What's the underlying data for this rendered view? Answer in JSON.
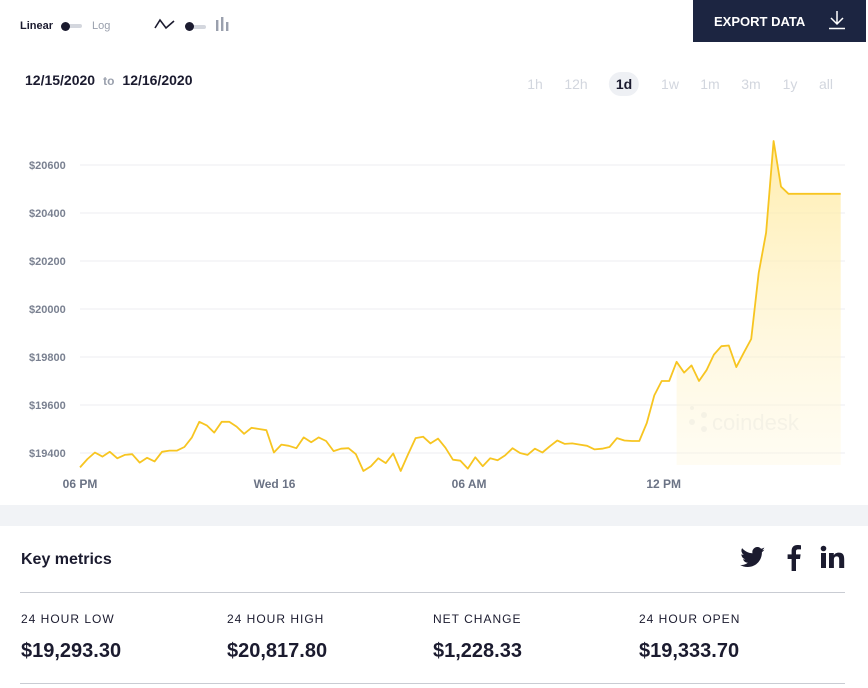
{
  "toolbar": {
    "scale_linear": "Linear",
    "scale_log": "Log",
    "export_label": "EXPORT DATA"
  },
  "date_range": {
    "from": "12/15/2020",
    "to_word": "to",
    "to": "12/16/2020"
  },
  "ranges": [
    {
      "label": "1h",
      "active": false
    },
    {
      "label": "12h",
      "active": false
    },
    {
      "label": "1d",
      "active": true
    },
    {
      "label": "1w",
      "active": false
    },
    {
      "label": "1m",
      "active": false
    },
    {
      "label": "3m",
      "active": false
    },
    {
      "label": "1y",
      "active": false
    },
    {
      "label": "all",
      "active": false
    }
  ],
  "chart_data": {
    "type": "area",
    "title": "",
    "xlabel": "",
    "ylabel": "",
    "y_tick_labels": [
      "$19400",
      "$19600",
      "$19800",
      "$20000",
      "$20200",
      "$20400",
      "$20600"
    ],
    "y_ticks": [
      19400,
      19600,
      19800,
      20000,
      20200,
      20400,
      20600
    ],
    "ylim": [
      19300,
      20700
    ],
    "x_tick_labels": [
      "06 PM",
      "Wed 16",
      "06 AM",
      "12 PM"
    ],
    "x_tick_hours": [
      18,
      24,
      30,
      36
    ],
    "xlim_hours": [
      18,
      41.5
    ],
    "grid": true,
    "line_color": "#f7c521",
    "fill_color": "#fff1c0",
    "watermark": "coindesk",
    "series": [
      {
        "x_hours": [
          18.0,
          18.23,
          18.46,
          18.69,
          18.92,
          19.15,
          19.38,
          19.61,
          19.84,
          20.07,
          20.3,
          20.53,
          20.76,
          20.99,
          21.22,
          21.45,
          21.68,
          21.91,
          22.14,
          22.37,
          22.6,
          22.83,
          23.06,
          23.29,
          23.52,
          23.75,
          23.98,
          24.21,
          24.44,
          24.67,
          24.9,
          25.13,
          25.36,
          25.59,
          25.82,
          26.05,
          26.28,
          26.51,
          26.74,
          26.97,
          27.2,
          27.43,
          27.66,
          27.89,
          28.12,
          28.35,
          28.58,
          28.81,
          29.04,
          29.27,
          29.5,
          29.73,
          29.96,
          30.19,
          30.42,
          30.65,
          30.88,
          31.11,
          31.34,
          31.57,
          31.8,
          32.03,
          32.26,
          32.49,
          32.72,
          32.95,
          33.18,
          33.41,
          33.64,
          33.87,
          34.1,
          34.33,
          34.56,
          34.79,
          35.02,
          35.25,
          35.48,
          35.71,
          35.94,
          36.17,
          36.4,
          36.63,
          36.86,
          37.09,
          37.32,
          37.55,
          37.78,
          38.01,
          38.24,
          38.47,
          38.7,
          38.93,
          39.16,
          39.39,
          39.62,
          39.85,
          40.08,
          40.31,
          40.54,
          40.77,
          41.0,
          41.23,
          41.46
        ],
        "values": [
          19340,
          19375,
          19402,
          19385,
          19405,
          19378,
          19392,
          19395,
          19360,
          19380,
          19365,
          19405,
          19410,
          19410,
          19425,
          19465,
          19530,
          19515,
          19485,
          19530,
          19530,
          19510,
          19480,
          19505,
          19500,
          19495,
          19402,
          19435,
          19430,
          19420,
          19465,
          19445,
          19465,
          19450,
          19408,
          19418,
          19420,
          19395,
          19325,
          19345,
          19378,
          19358,
          19398,
          19325,
          19395,
          19462,
          19468,
          19440,
          19460,
          19422,
          19372,
          19368,
          19335,
          19382,
          19345,
          19378,
          19370,
          19390,
          19420,
          19400,
          19392,
          19418,
          19402,
          19428,
          19452,
          19438,
          19440,
          19435,
          19430,
          19415,
          19418,
          19425,
          19462,
          19452,
          19450,
          19450,
          19525,
          19640,
          19700,
          19700,
          19780,
          19735,
          19765,
          19700,
          19745,
          19810,
          19845,
          19848,
          19758,
          19818,
          19875,
          20150,
          20318,
          20700,
          20510,
          20480,
          20480,
          20480,
          20480,
          20480,
          20480,
          20480,
          20480
        ]
      }
    ]
  },
  "key_metrics": {
    "title": "Key metrics",
    "social": [
      "twitter",
      "facebook",
      "linkedin"
    ],
    "items": [
      {
        "label": "24 HOUR LOW",
        "value": "$19,293.30"
      },
      {
        "label": "24 HOUR HIGH",
        "value": "$20,817.80"
      },
      {
        "label": "NET CHANGE",
        "value": "$1,228.33"
      },
      {
        "label": "24 HOUR OPEN",
        "value": "$19,333.70"
      }
    ]
  }
}
